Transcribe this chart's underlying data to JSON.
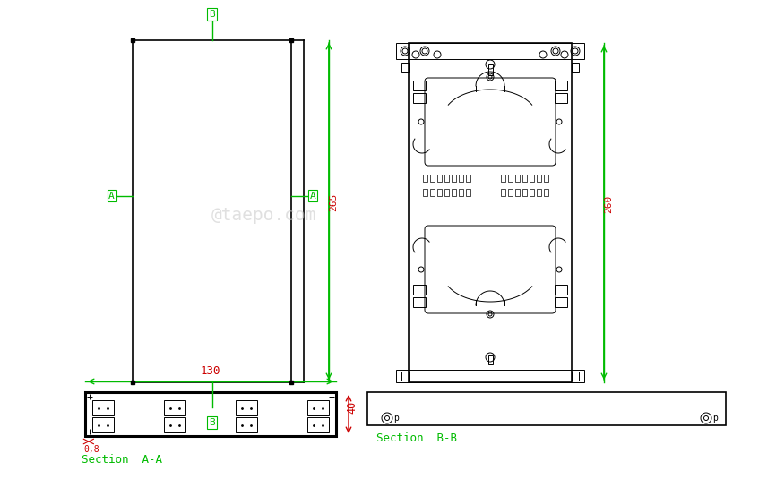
{
  "bg_color": "#ffffff",
  "line_color": "#000000",
  "green_color": "#00bb00",
  "red_color": "#cc0000",
  "watermark": "@taepo.com",
  "dim_130": "130",
  "dim_40": "40",
  "dim_08": "0,8",
  "dim_260": "260",
  "dim_265": "265",
  "label_A": "A",
  "label_B": "B",
  "section_aa": "Section  A-A",
  "section_bb": "Section  B-B"
}
